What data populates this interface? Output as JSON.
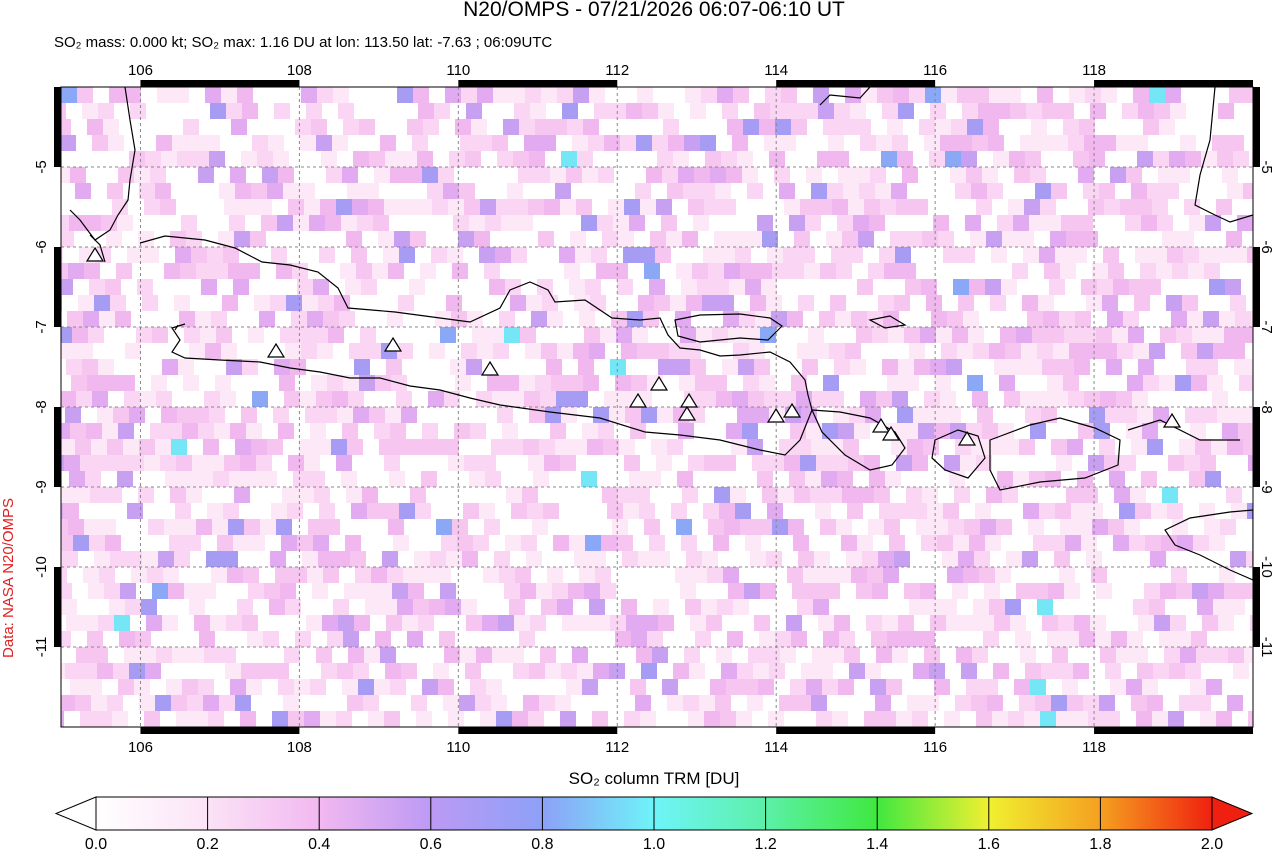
{
  "header": {
    "title": "N20/OMPS - 07/21/2026 06:07-06:10 UT",
    "subtitle": "SO₂ mass: 0.000 kt; SO₂ max: 1.16 DU at lon: 113.50 lat: -7.63 ; 06:09UTC"
  },
  "map": {
    "xlim": [
      105,
      120
    ],
    "ylim": [
      -12,
      -4
    ],
    "xticks": [
      106,
      108,
      110,
      112,
      114,
      116,
      118
    ],
    "yticks": [
      -5,
      -6,
      -7,
      -8,
      -9,
      -10,
      -11
    ],
    "credit": "Data: NASA N20/OMPS"
  },
  "colorbar": {
    "label": "SO₂ column TRM [DU]",
    "lim": [
      0,
      2
    ],
    "ticks": [
      {
        "value": 0,
        "label": "0.0"
      },
      {
        "value": 0.2,
        "label": "0.2"
      },
      {
        "value": 0.4,
        "label": "0.4"
      },
      {
        "value": 0.6,
        "label": "0.6"
      },
      {
        "value": 0.8,
        "label": "0.8"
      },
      {
        "value": 1,
        "label": "1.0"
      },
      {
        "value": 1.2,
        "label": "1.2"
      },
      {
        "value": 1.4,
        "label": "1.4"
      },
      {
        "value": 1.6,
        "label": "1.6"
      },
      {
        "value": 1.8,
        "label": "1.8"
      },
      {
        "value": 2,
        "label": "2.0"
      }
    ]
  }
}
